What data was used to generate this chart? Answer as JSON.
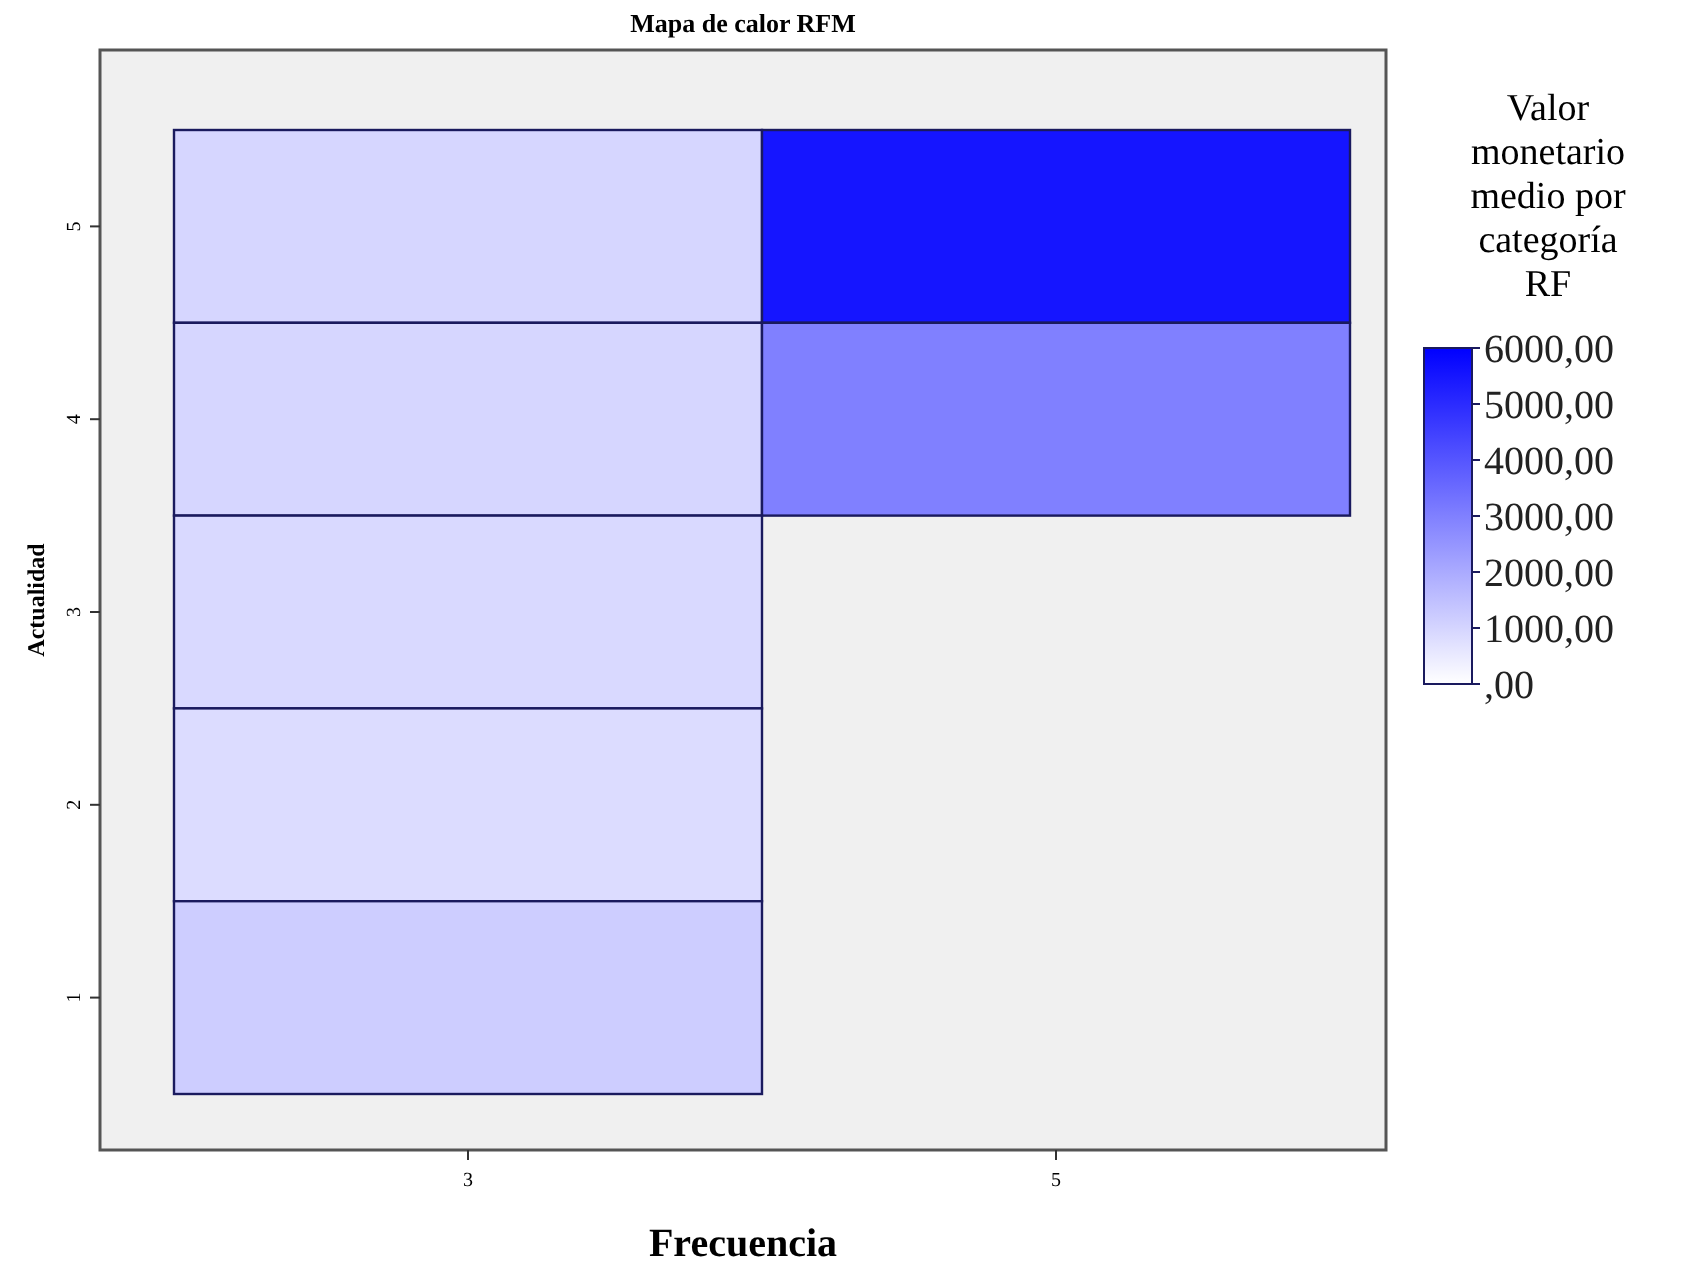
{
  "chart_data": {
    "type": "heatmap",
    "title": "Mapa de calor RFM",
    "xlabel": "Frecuencia",
    "ylabel": "Actualidad",
    "clabel": "Valor monetario medio por categoría RF",
    "categories": [
      "3",
      "5"
    ],
    "y_categories": [
      "5",
      "4",
      "3",
      "2",
      "1"
    ],
    "cells": [
      [
        960,
        5500
      ],
      [
        960,
        3000
      ],
      [
        900,
        null
      ],
      [
        820,
        null
      ],
      [
        1170,
        null
      ]
    ],
    "clim": [
      0,
      6000
    ],
    "cticks": [
      {
        "value": 6000,
        "label": "6000,00"
      },
      {
        "value": 5000,
        "label": "5000,00"
      },
      {
        "value": 4000,
        "label": "4000,00"
      },
      {
        "value": 3000,
        "label": "3000,00"
      },
      {
        "value": 2000,
        "label": "2000,00"
      },
      {
        "value": 1000,
        "label": "1000,00"
      },
      {
        "value": 0,
        "label": ",00"
      }
    ]
  }
}
